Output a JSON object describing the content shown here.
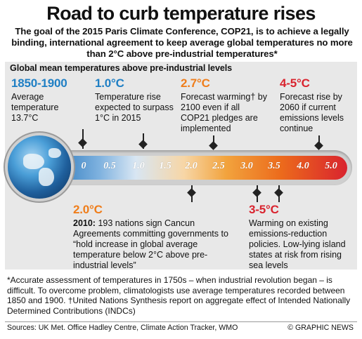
{
  "title": "Road to curb temperature rises",
  "subtitle": "The goal of the 2015 Paris Climate Conference, COP21, is to achieve a legally binding, international agreement to keep average global temperatures no more than 2°C above pre-industrial temperatures*",
  "panel_heading": "Global mean temperatures above pre-industrial levels",
  "top_items": [
    {
      "head": "1850-1900",
      "body": "Average temperature 13.7°C"
    },
    {
      "head": "1.0°C",
      "body": "Temperature rise expected to surpass 1°C in 2015"
    },
    {
      "head": "2.7°C",
      "body": "Forecast warming† by 2100 even if all COP21 pledges are implemented"
    },
    {
      "head": "4-5°C",
      "body": "Forecast rise by 2060 if current emissions levels continue"
    }
  ],
  "bottom_items": [
    {
      "head": "2.0°C",
      "year": "2010:",
      "body": " 193 nations sign Cancun Agreements committing governments to “hold increase in global average temperature below 2°C above pre-industrial levels”"
    },
    {
      "head": "3-5°C",
      "body": "Warming on existing emissions-reduction policies. Low-lying island states at risk from rising sea levels"
    }
  ],
  "scale_ticks": [
    "0",
    "0.5",
    "1.0",
    "1.5",
    "2.0",
    "2.5",
    "3.0",
    "3.5",
    "4.0",
    "5.0"
  ],
  "footnote": "*Accurate assessment of temperatures in 1750s – when industrial revolution began – is difficult. To overcome problem, climatologists use average temperatures recorded between 1850 and 1900. †United Nations Synthesis report on aggregate effect of Intended Nationally Determined Contributions (INDCs)",
  "sources": "Sources: UK Met. Office Hadley Centre, Climate Action Tracker, WMO",
  "credit": "© GRAPHIC NEWS",
  "colors": {
    "blue": "#1f7fc4",
    "orange": "#ef7d1a",
    "red": "#d9232e",
    "panel": "#e8e8e8"
  },
  "icons": {
    "globe": "earth-globe-icon",
    "thermometer": "thermometer-icon"
  }
}
